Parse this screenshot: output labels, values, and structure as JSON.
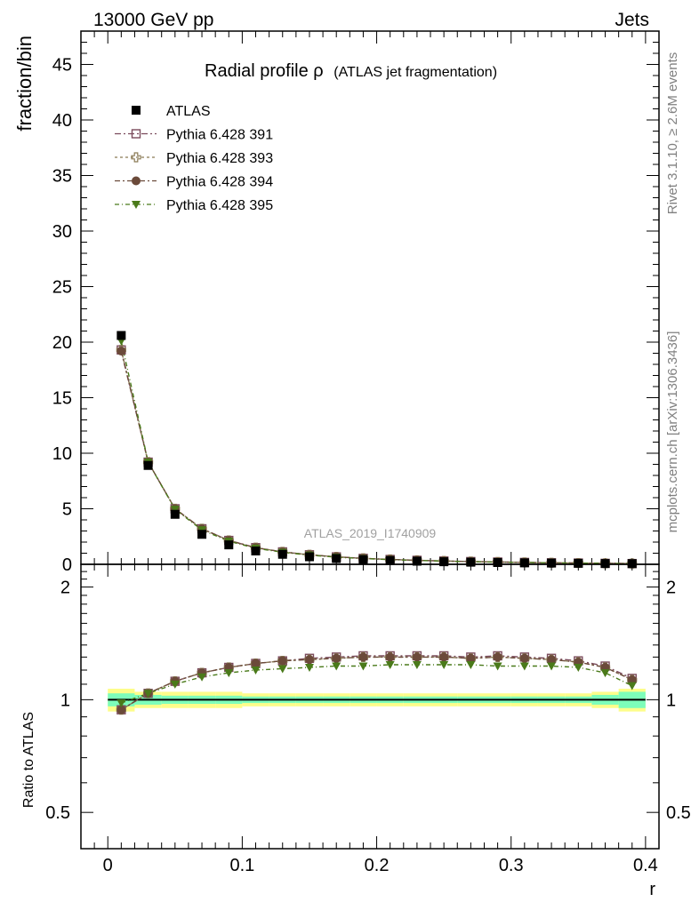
{
  "header": {
    "left": "13000 GeV pp",
    "right": "Jets"
  },
  "title": {
    "main": "Radial profile ρ",
    "sub": "(ATLAS jet fragmentation)"
  },
  "side_text": {
    "top": "Rivet 3.1.10, ≥ 2.6M events",
    "bottom": "mcplots.cern.ch [arXiv:1306.3436]"
  },
  "watermark": "ATLAS_2019_I1740909",
  "colors": {
    "atlas": "#000000",
    "p391": "#7b4b5c",
    "p393": "#8a7a55",
    "p394": "#6b4a3a",
    "p395": "#4a7a1a",
    "band_outer": "#fdfd8a",
    "band_inner": "#7dfdba"
  },
  "chart_data": [
    {
      "type": "scatter",
      "panel": "main",
      "ylabel": "fraction/bin",
      "ylim": [
        0,
        48
      ],
      "yticks": [
        0,
        5,
        10,
        15,
        20,
        25,
        30,
        35,
        40,
        45
      ],
      "xlim": [
        -0.02,
        0.41
      ],
      "x": [
        0.01,
        0.03,
        0.05,
        0.07,
        0.09,
        0.11,
        0.13,
        0.15,
        0.17,
        0.19,
        0.21,
        0.23,
        0.25,
        0.27,
        0.29,
        0.31,
        0.33,
        0.35,
        0.37,
        0.39
      ],
      "legend": [
        {
          "key": "atlas",
          "label": "ATLAS",
          "marker": "square-filled"
        },
        {
          "key": "p391",
          "label": "Pythia 6.428 391",
          "marker": "square-open"
        },
        {
          "key": "p393",
          "label": "Pythia 6.428 393",
          "marker": "cross-open"
        },
        {
          "key": "p394",
          "label": "Pythia 6.428 394",
          "marker": "circle-filled"
        },
        {
          "key": "p395",
          "label": "Pythia 6.428 395",
          "marker": "triangle-down"
        }
      ],
      "series": [
        {
          "key": "atlas",
          "values": [
            20.6,
            8.9,
            4.5,
            2.7,
            1.75,
            1.2,
            0.9,
            0.68,
            0.52,
            0.42,
            0.34,
            0.28,
            0.23,
            0.19,
            0.16,
            0.13,
            0.11,
            0.09,
            0.07,
            0.06
          ]
        },
        {
          "key": "p391",
          "values": [
            19.3,
            9.2,
            5.0,
            3.2,
            2.15,
            1.5,
            1.12,
            0.86,
            0.67,
            0.54,
            0.44,
            0.36,
            0.3,
            0.25,
            0.21,
            0.17,
            0.14,
            0.115,
            0.088,
            0.068
          ]
        },
        {
          "key": "p393",
          "values": [
            19.3,
            9.2,
            5.0,
            3.2,
            2.15,
            1.5,
            1.12,
            0.86,
            0.67,
            0.54,
            0.44,
            0.36,
            0.3,
            0.25,
            0.21,
            0.17,
            0.14,
            0.115,
            0.088,
            0.068
          ]
        },
        {
          "key": "p394",
          "values": [
            19.2,
            9.2,
            5.0,
            3.2,
            2.15,
            1.5,
            1.12,
            0.86,
            0.67,
            0.54,
            0.44,
            0.36,
            0.3,
            0.25,
            0.21,
            0.17,
            0.14,
            0.115,
            0.088,
            0.068
          ]
        },
        {
          "key": "p395",
          "values": [
            20.1,
            9.2,
            4.95,
            3.1,
            2.08,
            1.45,
            1.08,
            0.83,
            0.64,
            0.52,
            0.42,
            0.35,
            0.29,
            0.24,
            0.2,
            0.165,
            0.135,
            0.11,
            0.085,
            0.066
          ]
        }
      ]
    },
    {
      "type": "scatter",
      "panel": "ratio",
      "ylabel": "Ratio to ATLAS",
      "xlabel": "r",
      "ylim_log": [
        0.4,
        2.3
      ],
      "yticks": [
        0.5,
        1,
        2
      ],
      "xticks": [
        0,
        0.1,
        0.2,
        0.3,
        0.4
      ],
      "x": [
        0.01,
        0.03,
        0.05,
        0.07,
        0.09,
        0.11,
        0.13,
        0.15,
        0.17,
        0.19,
        0.21,
        0.23,
        0.25,
        0.27,
        0.29,
        0.31,
        0.33,
        0.35,
        0.37,
        0.39
      ],
      "band_outer": [
        0.07,
        0.05,
        0.05,
        0.05,
        0.05,
        0.04,
        0.04,
        0.04,
        0.04,
        0.04,
        0.04,
        0.04,
        0.04,
        0.04,
        0.04,
        0.04,
        0.04,
        0.04,
        0.05,
        0.07
      ],
      "band_inner": [
        0.04,
        0.03,
        0.025,
        0.025,
        0.025,
        0.02,
        0.02,
        0.02,
        0.02,
        0.02,
        0.02,
        0.02,
        0.02,
        0.02,
        0.02,
        0.02,
        0.02,
        0.02,
        0.03,
        0.05
      ],
      "series": [
        {
          "key": "p391",
          "values": [
            0.94,
            1.04,
            1.12,
            1.18,
            1.22,
            1.25,
            1.27,
            1.29,
            1.3,
            1.31,
            1.31,
            1.31,
            1.31,
            1.3,
            1.31,
            1.3,
            1.29,
            1.27,
            1.23,
            1.14
          ]
        },
        {
          "key": "p393",
          "values": [
            0.94,
            1.04,
            1.12,
            1.18,
            1.22,
            1.25,
            1.27,
            1.28,
            1.29,
            1.3,
            1.3,
            1.3,
            1.3,
            1.29,
            1.3,
            1.29,
            1.28,
            1.26,
            1.22,
            1.13
          ]
        },
        {
          "key": "p394",
          "values": [
            0.94,
            1.04,
            1.12,
            1.18,
            1.22,
            1.25,
            1.27,
            1.28,
            1.29,
            1.3,
            1.3,
            1.3,
            1.3,
            1.29,
            1.3,
            1.29,
            1.28,
            1.26,
            1.22,
            1.13
          ]
        },
        {
          "key": "p395",
          "values": [
            0.98,
            1.04,
            1.1,
            1.15,
            1.18,
            1.2,
            1.21,
            1.22,
            1.23,
            1.23,
            1.24,
            1.24,
            1.24,
            1.24,
            1.23,
            1.23,
            1.23,
            1.22,
            1.18,
            1.09
          ]
        }
      ]
    }
  ]
}
